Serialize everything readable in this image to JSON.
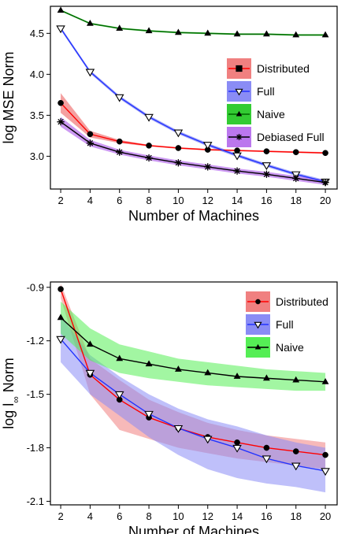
{
  "chart_data": [
    {
      "type": "line",
      "xlabel": "Number of Machines",
      "ylabel": "log MSE Norm",
      "x": [
        2,
        4,
        6,
        8,
        10,
        12,
        14,
        16,
        18,
        20
      ],
      "xticks": [
        2,
        4,
        6,
        8,
        10,
        12,
        14,
        16,
        18,
        20
      ],
      "yticks": [
        "2.5",
        "3.0",
        "3.5",
        "4.0",
        "4.5"
      ],
      "ytick_values": [
        2.5,
        3.0,
        3.5,
        4.0,
        4.5
      ],
      "xlim": [
        1.3,
        20.8
      ],
      "ylim": [
        2.6,
        4.83
      ],
      "grid": false,
      "legend_position": "right",
      "series": [
        {
          "name": "Distributed",
          "color": "#ff0000",
          "band_color": "#f08080",
          "marker": "circle",
          "values": [
            3.65,
            3.27,
            3.18,
            3.13,
            3.1,
            3.08,
            3.07,
            3.06,
            3.05,
            3.04
          ],
          "lower": [
            3.53,
            3.23,
            3.16,
            3.12,
            3.09,
            3.07,
            3.06,
            3.05,
            3.04,
            3.03
          ],
          "upper": [
            3.77,
            3.31,
            3.2,
            3.14,
            3.11,
            3.09,
            3.08,
            3.07,
            3.06,
            3.05
          ]
        },
        {
          "name": "Full",
          "color": "#2233ff",
          "band_color": "#8a8cf5",
          "marker": "triangle-down",
          "values": [
            4.56,
            4.03,
            3.72,
            3.48,
            3.29,
            3.14,
            3.01,
            2.89,
            2.78,
            2.69
          ],
          "lower": [
            4.54,
            4.01,
            3.7,
            3.46,
            3.27,
            3.12,
            2.99,
            2.87,
            2.76,
            2.67
          ],
          "upper": [
            4.58,
            4.05,
            3.74,
            3.5,
            3.31,
            3.16,
            3.03,
            2.91,
            2.8,
            2.71
          ]
        },
        {
          "name": "Naive",
          "color": "#006600",
          "band_color": "#33cc33",
          "marker": "triangle-up",
          "values": [
            4.78,
            4.62,
            4.56,
            4.53,
            4.51,
            4.5,
            4.49,
            4.49,
            4.48,
            4.48
          ],
          "lower": [
            4.77,
            4.61,
            4.55,
            4.52,
            4.5,
            4.49,
            4.48,
            4.48,
            4.47,
            4.47
          ],
          "upper": [
            4.79,
            4.63,
            4.57,
            4.54,
            4.52,
            4.51,
            4.5,
            4.5,
            4.49,
            4.49
          ]
        },
        {
          "name": "Debiased Full",
          "color": "#000000",
          "band_color": "#bb77ee",
          "marker": "star",
          "values": [
            3.42,
            3.16,
            3.05,
            2.98,
            2.92,
            2.87,
            2.82,
            2.78,
            2.73,
            2.68
          ],
          "lower": [
            3.36,
            3.12,
            3.02,
            2.95,
            2.89,
            2.84,
            2.79,
            2.75,
            2.7,
            2.65
          ],
          "upper": [
            3.48,
            3.2,
            3.08,
            3.01,
            2.95,
            2.9,
            2.85,
            2.81,
            2.76,
            2.71
          ]
        }
      ]
    },
    {
      "type": "line",
      "xlabel": "Number of Machines",
      "ylabel_prefix": "log l",
      "ylabel_subscript": "∞",
      "ylabel_suffix": " Norm",
      "x": [
        2,
        4,
        6,
        8,
        10,
        12,
        14,
        16,
        18,
        20
      ],
      "xticks": [
        2,
        4,
        6,
        8,
        10,
        12,
        14,
        16,
        18,
        20
      ],
      "yticks": [
        "-2.1",
        "-1.8",
        "-1.5",
        "-1.2",
        "-0.9"
      ],
      "ytick_values": [
        -2.1,
        -1.8,
        -1.5,
        -1.2,
        -0.9
      ],
      "xlim": [
        1.3,
        20.8
      ],
      "ylim": [
        -2.12,
        -0.87
      ],
      "grid": false,
      "legend_position": "top-right",
      "series": [
        {
          "name": "Distributed",
          "color": "#ff0000",
          "band_color": "#f08080",
          "marker": "circle",
          "values": [
            -0.91,
            -1.39,
            -1.53,
            -1.63,
            -1.69,
            -1.74,
            -1.77,
            -1.8,
            -1.82,
            -1.84
          ],
          "lower": [
            -0.96,
            -1.5,
            -1.7,
            -1.75,
            -1.8,
            -1.83,
            -1.86,
            -1.88,
            -1.9,
            -1.92
          ],
          "upper": [
            -0.88,
            -1.3,
            -1.42,
            -1.53,
            -1.6,
            -1.66,
            -1.7,
            -1.73,
            -1.75,
            -1.77
          ]
        },
        {
          "name": "Full",
          "color": "#2233ff",
          "band_color": "#8a8cf5",
          "marker": "triangle-down",
          "values": [
            -1.19,
            -1.38,
            -1.5,
            -1.61,
            -1.69,
            -1.75,
            -1.8,
            -1.86,
            -1.9,
            -1.93
          ],
          "lower": [
            -1.32,
            -1.5,
            -1.62,
            -1.74,
            -1.84,
            -1.92,
            -1.97,
            -2.0,
            -2.02,
            -2.05
          ],
          "upper": [
            -1.06,
            -1.28,
            -1.4,
            -1.5,
            -1.58,
            -1.64,
            -1.68,
            -1.73,
            -1.77,
            -1.8
          ]
        },
        {
          "name": "Naive",
          "color": "#000000",
          "band_color": "#55ee55",
          "marker": "triangle-up",
          "values": [
            -1.07,
            -1.22,
            -1.3,
            -1.33,
            -1.36,
            -1.38,
            -1.4,
            -1.41,
            -1.42,
            -1.43
          ],
          "lower": [
            -1.16,
            -1.31,
            -1.38,
            -1.41,
            -1.43,
            -1.45,
            -1.46,
            -1.47,
            -1.48,
            -1.48
          ],
          "upper": [
            -0.98,
            -1.13,
            -1.22,
            -1.26,
            -1.3,
            -1.32,
            -1.34,
            -1.36,
            -1.37,
            -1.38
          ]
        }
      ]
    }
  ]
}
